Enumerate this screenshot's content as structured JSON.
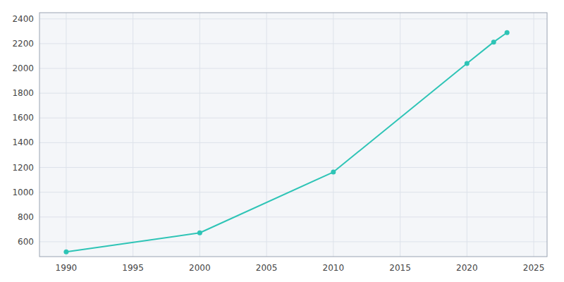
{
  "chart_data": {
    "type": "line",
    "x": [
      1990,
      2000,
      2010,
      2020,
      2022,
      2023
    ],
    "values": [
      519,
      672,
      1163,
      2040,
      2213,
      2289
    ],
    "color": "#2ec4b6",
    "marker": "circle",
    "xlim": [
      1988,
      2026
    ],
    "xticks": [
      1990,
      1995,
      2000,
      2005,
      2010,
      2015,
      2020,
      2025
    ],
    "ylim": [
      480,
      2450
    ],
    "yticks": [
      600,
      800,
      1000,
      1200,
      1400,
      1600,
      1800,
      2000,
      2200,
      2400
    ],
    "grid": true
  }
}
